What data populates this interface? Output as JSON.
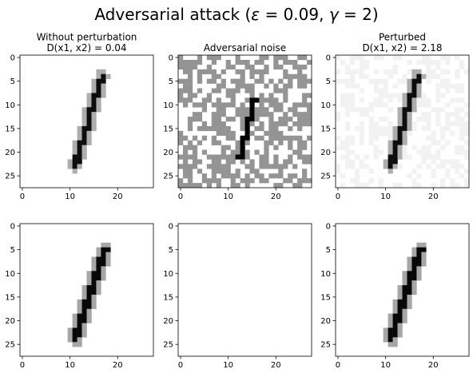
{
  "figure": {
    "title_prefix": "Adversarial attack (",
    "title_eps_symbol": "ε",
    "title_eps_value": " = 0.09,  ",
    "title_gamma_symbol": "γ",
    "title_gamma_value": " = 2)"
  },
  "chart_data": [
    {
      "type": "heatmap",
      "title_lines": [
        "Without perturbation",
        "D(x1, x2) = 0.04"
      ],
      "x_ticks": [
        0,
        10,
        20
      ],
      "y_ticks": [
        0,
        5,
        10,
        15,
        20,
        25
      ],
      "grid_size": 28,
      "colormap": "gray_r",
      "strokes": [
        {
          "x1": 11.2,
          "y1": 22.5,
          "x2": 16.6,
          "y2": 4.2,
          "w": 1.05,
          "v": 0.95,
          "halo": 0.32
        }
      ],
      "noise": null
    },
    {
      "type": "heatmap",
      "title_lines": [
        "Adversarial noise"
      ],
      "x_ticks": [
        0,
        10,
        20
      ],
      "y_ticks": [
        0,
        5,
        10,
        15,
        20,
        25
      ],
      "grid_size": 28,
      "colormap": "gray_r",
      "strokes": [
        {
          "x1": 12.4,
          "y1": 21.2,
          "x2": 15.6,
          "y2": 8.6,
          "w": 0.95,
          "v": 1.0,
          "halo": 0
        }
      ],
      "noise": {
        "density": 0.52,
        "level": 0.42,
        "seed": 7
      }
    },
    {
      "type": "heatmap",
      "title_lines": [
        "Perturbed",
        "D(x1, x2) = 2.18"
      ],
      "x_ticks": [
        0,
        10,
        20
      ],
      "y_ticks": [
        0,
        5,
        10,
        15,
        20,
        25
      ],
      "grid_size": 28,
      "colormap": "gray_r",
      "strokes": [
        {
          "x1": 11.2,
          "y1": 22.5,
          "x2": 16.6,
          "y2": 4.2,
          "w": 1.05,
          "v": 0.95,
          "halo": 0.32
        }
      ],
      "noise": {
        "density": 0.45,
        "level": 0.05,
        "seed": 13
      }
    },
    {
      "type": "heatmap",
      "title_lines": [],
      "x_ticks": [
        0,
        10,
        20
      ],
      "y_ticks": [
        0,
        5,
        10,
        15,
        20,
        25
      ],
      "grid_size": 28,
      "colormap": "gray_r",
      "strokes": [
        {
          "x1": 11.3,
          "y1": 23.5,
          "x2": 17.3,
          "y2": 5.2,
          "w": 1.35,
          "v": 0.97,
          "halo": 0.35
        }
      ],
      "noise": null
    },
    {
      "type": "heatmap",
      "title_lines": [],
      "x_ticks": [
        0,
        10,
        20
      ],
      "y_ticks": [
        0,
        5,
        10,
        15,
        20,
        25
      ],
      "grid_size": 28,
      "colormap": "gray_r",
      "strokes": [],
      "noise": null
    },
    {
      "type": "heatmap",
      "title_lines": [],
      "x_ticks": [
        0,
        10,
        20
      ],
      "y_ticks": [
        0,
        5,
        10,
        15,
        20,
        25
      ],
      "grid_size": 28,
      "colormap": "gray_r",
      "strokes": [
        {
          "x1": 11.3,
          "y1": 23.5,
          "x2": 17.3,
          "y2": 5.2,
          "w": 1.35,
          "v": 0.97,
          "halo": 0.35
        }
      ],
      "noise": null
    }
  ]
}
